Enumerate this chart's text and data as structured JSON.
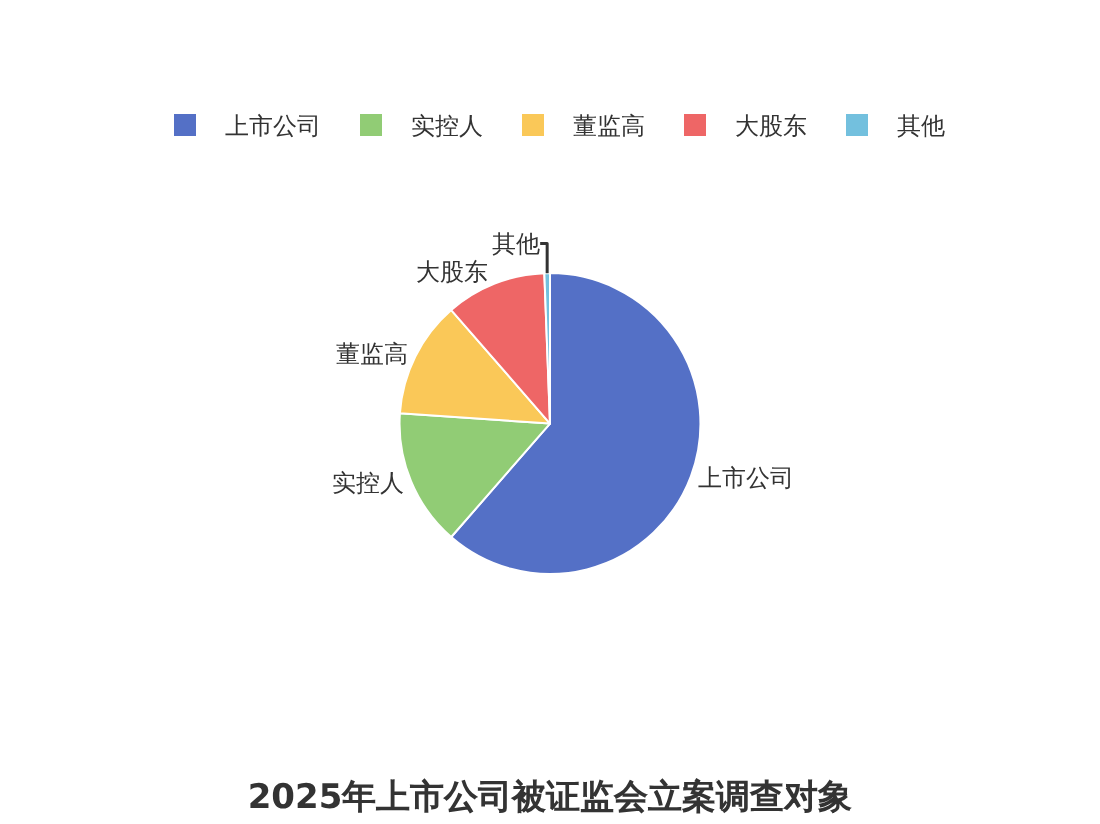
{
  "chart_data": {
    "type": "pie",
    "title": "2025年上市公司被证监会立案调查对象",
    "categories": [
      "上市公司",
      "实控人",
      "董监高",
      "大股东",
      "其他"
    ],
    "values": [
      61.4,
      14.7,
      12.5,
      10.8,
      0.6
    ],
    "colors": [
      "#5470c6",
      "#91cc75",
      "#fac858",
      "#ee6666",
      "#73c0de"
    ],
    "legend": "top"
  }
}
